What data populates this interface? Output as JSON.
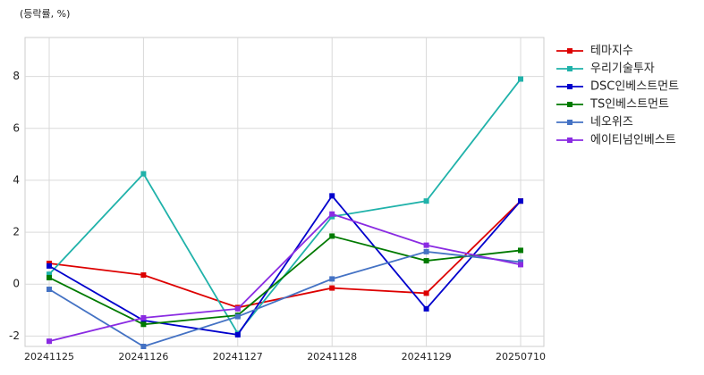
{
  "chart_data": {
    "type": "line",
    "y_label": "(등락률, %)",
    "categories": [
      "20241125",
      "20241126",
      "20241127",
      "20241128",
      "20241129",
      "20250710"
    ],
    "series": [
      {
        "name": "테마지수",
        "color": "#dd0000",
        "values": [
          0.8,
          0.35,
          -0.9,
          -0.15,
          -0.35,
          3.2
        ]
      },
      {
        "name": "우리기술투자",
        "color": "#20b2aa",
        "values": [
          0.38,
          4.25,
          -1.9,
          2.6,
          3.2,
          7.9
        ]
      },
      {
        "name": "DSC인베스트먼트",
        "color": "#0000cc",
        "values": [
          0.7,
          -1.4,
          -1.95,
          3.4,
          -0.95,
          3.2
        ]
      },
      {
        "name": "TS인베스트먼트",
        "color": "#007a00",
        "values": [
          0.25,
          -1.55,
          -1.2,
          1.85,
          0.9,
          1.3
        ]
      },
      {
        "name": "네오위즈",
        "color": "#4472c4",
        "values": [
          -0.2,
          -2.4,
          -1.25,
          0.2,
          1.25,
          0.85
        ]
      },
      {
        "name": "에이티넘인베스트",
        "color": "#8a2be2",
        "values": [
          -2.2,
          -1.3,
          -0.95,
          2.7,
          1.5,
          0.75
        ]
      }
    ],
    "ylim": [
      -2.4,
      9.5
    ],
    "yticks": [
      -2,
      0,
      2,
      4,
      6,
      8
    ],
    "grid": true,
    "legend": "outside-right"
  }
}
